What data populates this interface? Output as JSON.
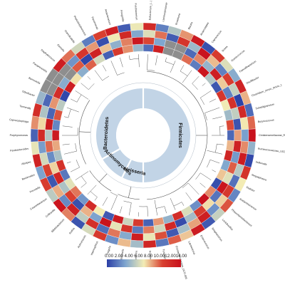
{
  "chart_data": {
    "type": "heatmap",
    "title": "",
    "layout": "circular",
    "legend": {
      "placement": "bottom-center",
      "ticks": [
        "0.00",
        "2.00",
        "4.00",
        "6.00",
        "8.00",
        "10.00",
        "12.00",
        "14.00"
      ],
      "tick_label_text": "0.00 2.00 4.00 6.00 8.00 10.0012.0014.00",
      "range": [
        0,
        14
      ],
      "colors": [
        "#2b3fa6",
        "#7fa6cf",
        "#f3ecb4",
        "#d84030",
        "#c8101c"
      ]
    },
    "phyla": [
      {
        "name": "Firmicutes",
        "color": "#c2d4e6"
      },
      {
        "name": "Neisseria",
        "color": "#c2d4e6"
      },
      {
        "name": "Actinomycetes",
        "color": "#c2d4e6"
      },
      {
        "name": "Bacteroidetes",
        "color": "#c2d4e6"
      }
    ],
    "taxa": [
      "Eubacterium_(...)",
      "Lachnospiraceae",
      "Roseburia",
      "Blautia",
      "Anaerostipes",
      "Coprococcus",
      "Dorea",
      "Ruminococcus",
      "Faecalibacterium",
      "Oscillibacter",
      "Clostridium_sensu_stricto_1",
      "Subdoligranulum",
      "Butyricicoccus",
      "Christensenellaceae_R-7_group",
      "Ruminococcaceae_UCG-002",
      "Veillonella",
      "Megasphaera",
      "Dialister",
      "Acidaminococcus",
      "Phascolarctobacterium",
      "Lactobacillus",
      "Streptococcus",
      "Enterococcus",
      "Lactococcus",
      "Erysipelotrichaceae_UCG-003",
      "Turicibacter",
      "Holdemanella",
      "Neisseria",
      "Eikenella",
      "Kingella",
      "Haemophilus",
      "Actinomyces",
      "Rothia",
      "Bifidobacterium",
      "Collinsella",
      "Corynebacterium",
      "Prevotella",
      "Bacteroides",
      "Alistipes",
      "Parabacteroides",
      "Porphyromonas",
      "Capnocytophaga",
      "Tannerella",
      "Odoribacter",
      "Barnesiella",
      "Paraprevotella",
      "Staphylococcus",
      "Gemella",
      "Granulicatella",
      "Peptostreptococcus",
      "Parvimonas",
      "Anaerococcus",
      "Finegoldia",
      "Fusobacterium"
    ],
    "group_spans": [
      {
        "phylum": "Firmicutes",
        "from_taxon": 0,
        "to_taxon": 26
      },
      {
        "phylum": "Neisseria",
        "from_taxon": 27,
        "to_taxon": 30
      },
      {
        "phylum": "Actinomycetes",
        "from_taxon": 31,
        "to_taxon": 35
      },
      {
        "phylum": "Bacteroidetes",
        "from_taxon": 36,
        "to_taxon": 45
      }
    ],
    "rings": 4,
    "values": [
      [
        1.6,
        12.8,
        7.4,
        3.2,
        9.6,
        2.1,
        13.5,
        5.0,
        0.8,
        11.2,
        6.9,
        4.5,
        10.3,
        1.4,
        8.1,
        12.4,
        3.6,
        7.8,
        0.5,
        9.0,
        13.9,
        2.7,
        6.2,
        11.8,
        4.1,
        8.7,
        1.2,
        10.9,
        5.8,
        13.1,
        0.9,
        7.0,
        12.0,
        3.0,
        9.4,
        6.5,
        1.9,
        11.5,
        4.8,
        8.4,
        13.3,
        2.4,
        10.1,
        5.3,
        0.3,
        12.9,
        7.2,
        3.9,
        9.8,
        6.0,
        1.1,
        11.0,
        8.9,
        4.3
      ],
      [
        10.4,
        3.5,
        12.2,
        6.8,
        1.5,
        9.1,
        4.2,
        13.0,
        7.7,
        2.3,
        11.6,
        5.5,
        0.7,
        8.6,
        12.7,
        3.1,
        9.9,
        6.4,
        13.6,
        1.8,
        7.3,
        10.8,
        4.6,
        0.4,
        12.3,
        5.9,
        9.3,
        2.0,
        11.4,
        6.6,
        13.8,
        3.4,
        8.2,
        0.6,
        10.6,
        4.9,
        12.5,
        7.5,
        2.6,
        9.7,
        5.1,
        13.2,
        1.3,
        8.8,
        11.9,
        3.8,
        6.1,
        10.0,
        0.2,
        12.6,
        7.9,
        4.0,
        9.2,
        13.4
      ],
      [
        6.3,
        9.5,
        1.0,
        11.3,
        4.4,
        13.7,
        8.0,
        2.2,
        10.7,
        5.6,
        0.1,
        12.1,
        7.1,
        3.3,
        9.0,
        13.2,
        5.2,
        1.7,
        11.1,
        7.6,
        2.8,
        12.9,
        8.5,
        4.7,
        0.9,
        10.2,
        6.7,
        13.0,
        3.7,
        9.4,
        1.6,
        11.7,
        5.4,
        12.8,
        2.5,
        8.3,
        0.8,
        10.5,
        6.0,
        3.2,
        12.0,
        7.4,
        4.9,
        1.4,
        9.6,
        13.5,
        5.7,
        2.9,
        11.2,
        8.7,
        0.5,
        6.9,
        12.2,
        3.6
      ],
      [
        12.0,
        2.2,
        5.0,
        8.8,
        13.3,
        0.6,
        10.9,
        6.3,
        3.8,
        12.6,
        8.2,
        1.5,
        9.7,
        13.9,
        4.1,
        0.3,
        11.5,
        7.0,
        2.4,
        10.1,
        5.6,
        0.9,
        13.1,
        7.8,
        9.9,
        1.9,
        12.4,
        4.6,
        8.0,
        2.7,
        11.0,
        6.1,
        0.7,
        9.2,
        13.6,
        5.3,
        10.8,
        3.4,
        12.7,
        6.6,
        1.2,
        8.9,
        11.8,
        4.3,
        7.3,
        0.4,
        13.0,
        9.5,
        5.9,
        2.1,
        10.6,
        12.9,
        1.0,
        6.8
      ]
    ],
    "grey_cells": [
      [
        0,
        2
      ],
      [
        1,
        2
      ],
      [
        0,
        3
      ],
      [
        1,
        3
      ],
      [
        2,
        44
      ],
      [
        3,
        44
      ],
      [
        2,
        45
      ],
      [
        3,
        45
      ],
      [
        1,
        46
      ],
      [
        2,
        46
      ]
    ]
  }
}
